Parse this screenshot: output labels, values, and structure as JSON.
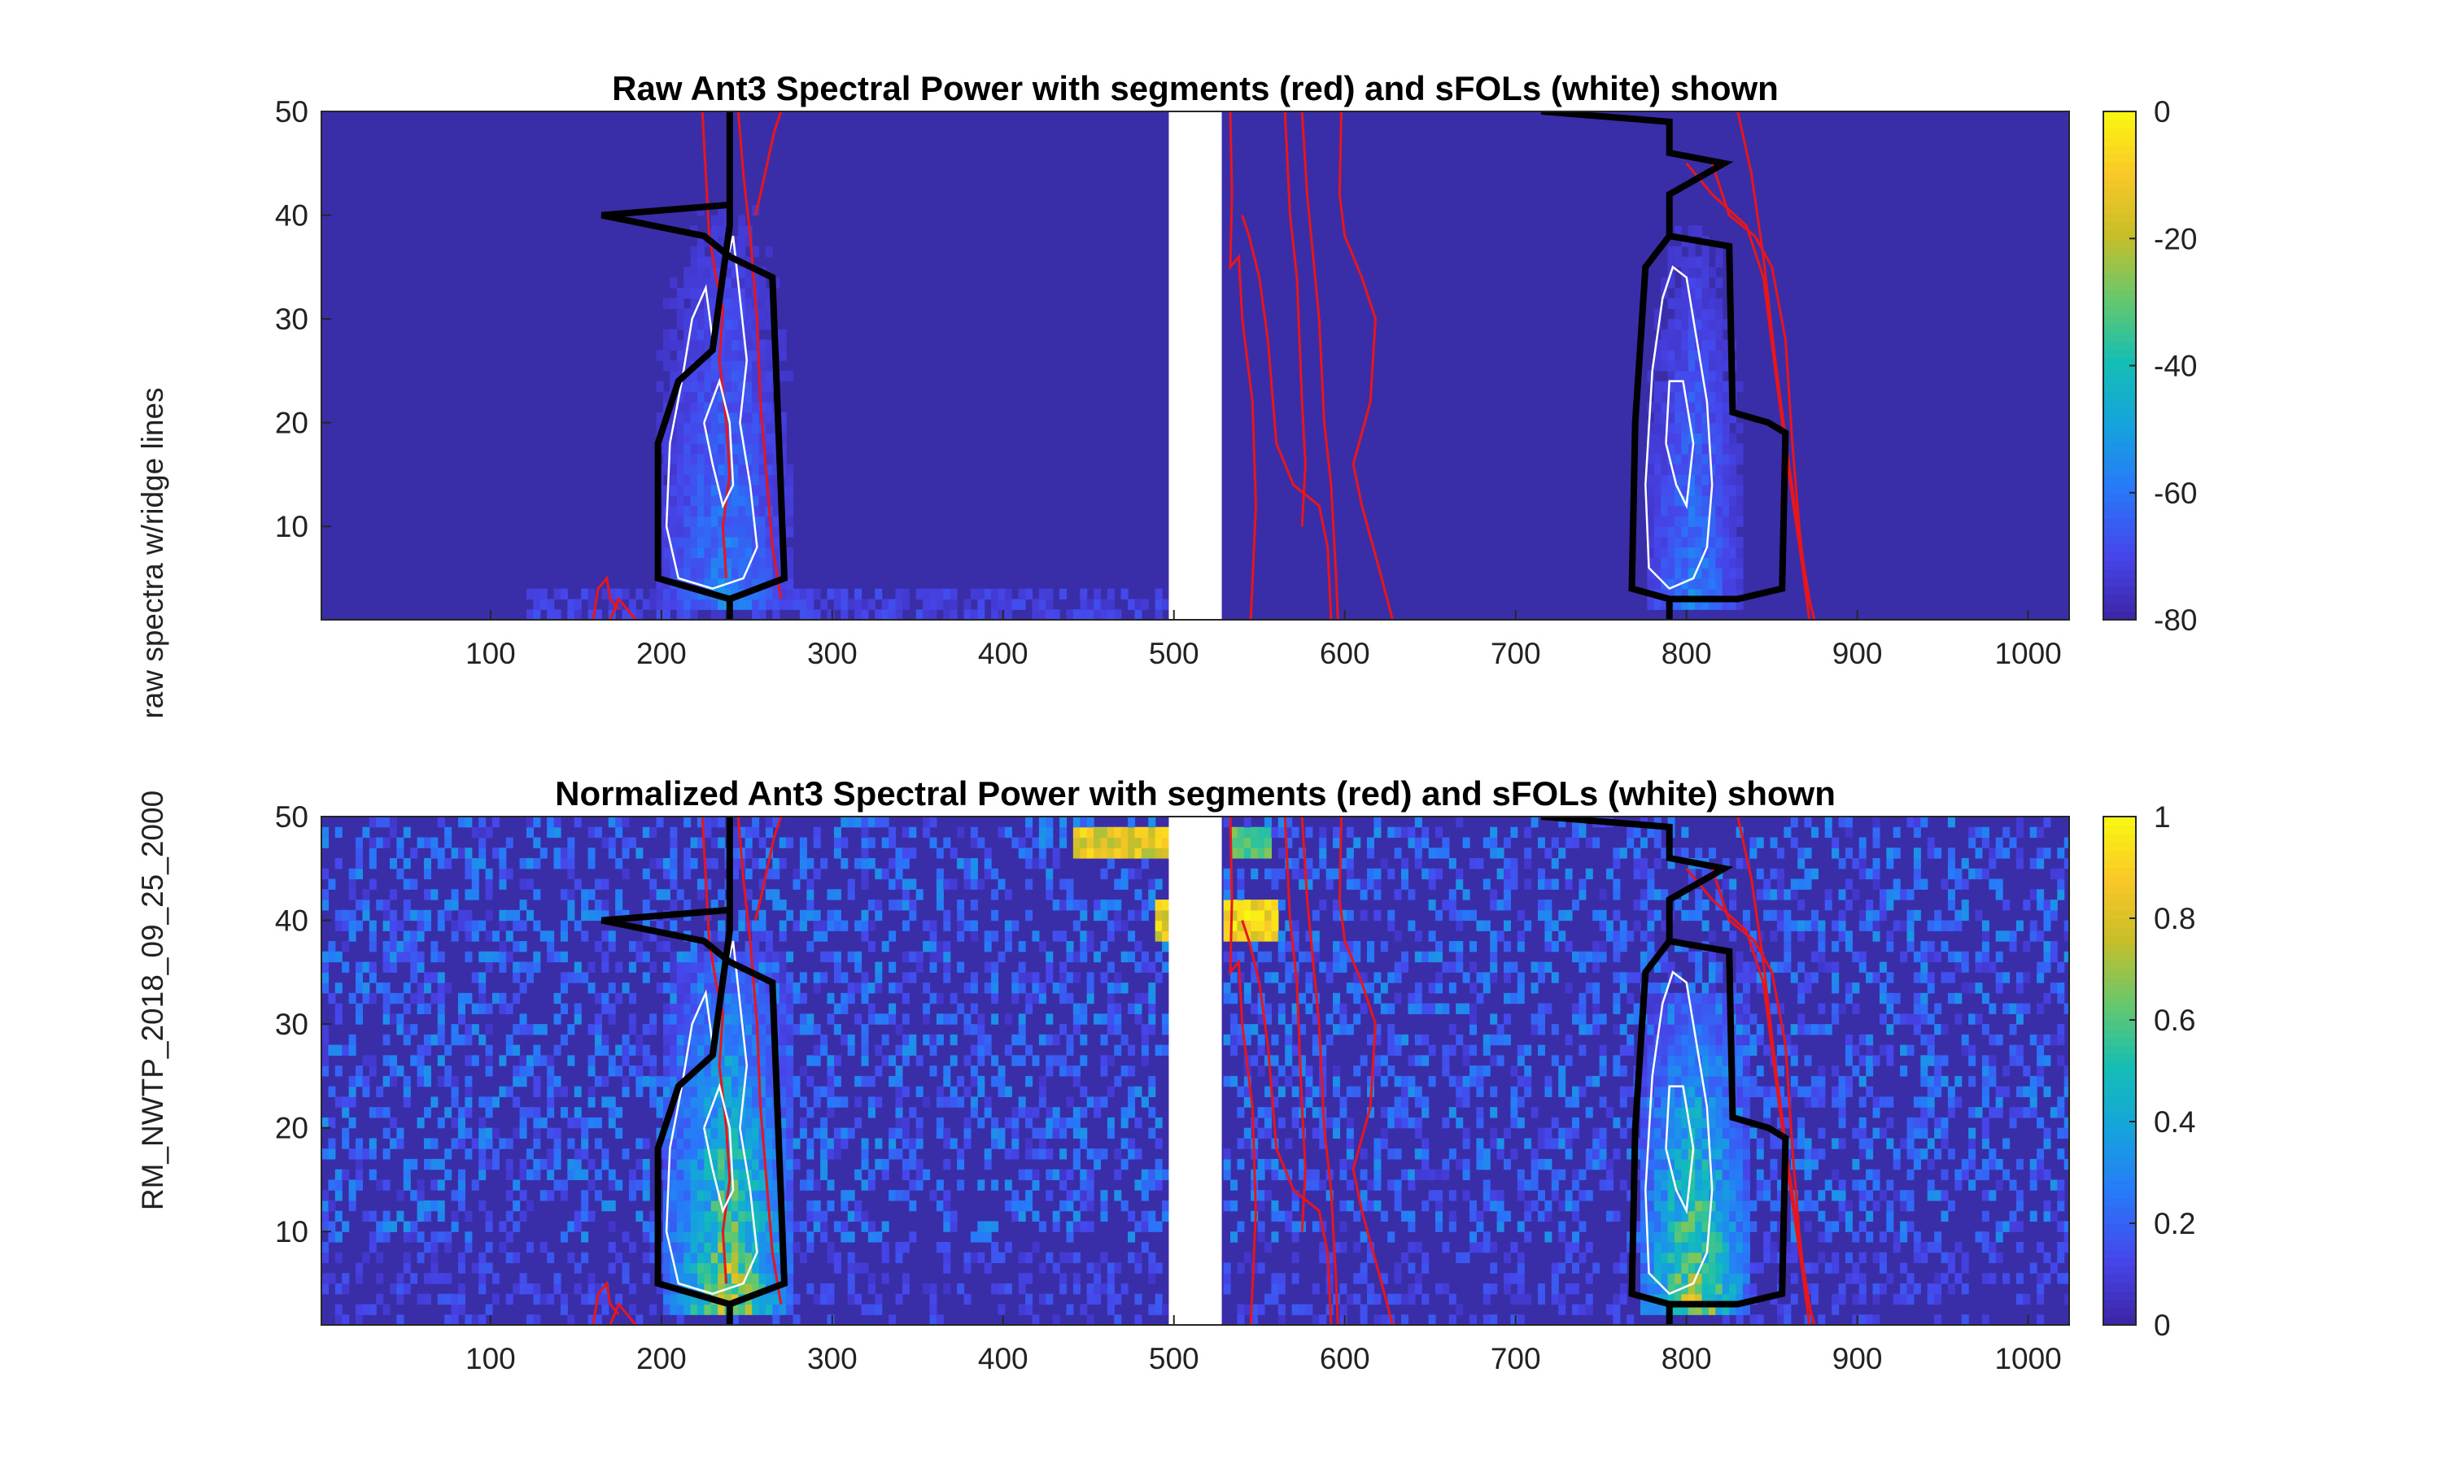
{
  "figure": {
    "ylabel_lines": [
      "RM_NWTP_2018_09_25_2000",
      "raw spectra w/ridge lines"
    ],
    "background": "#ffffff"
  },
  "colors": {
    "field_low": "#3a2ea8",
    "segment_line": "#e8161b",
    "sfol_line": "#ffffff",
    "boundary_line": "#000000",
    "gap_fill": "#ffffff"
  },
  "chart_data": [
    {
      "type": "heatmap",
      "title": "Raw Ant3 Spectral Power with segments (red) and sFOLs (white) shown",
      "xlabel": "",
      "ylabel": "",
      "xlim": [
        1,
        1024
      ],
      "ylim": [
        1,
        50
      ],
      "xticks": [
        100,
        200,
        300,
        400,
        500,
        600,
        700,
        800,
        900,
        1000
      ],
      "yticks": [
        10,
        20,
        30,
        40,
        50
      ],
      "colorbar": {
        "colormap": "parula",
        "range": [
          -80,
          0
        ],
        "ticks": [
          0,
          -20,
          -40,
          -60,
          -80
        ]
      },
      "gap_x": [
        497,
        528
      ],
      "energy_regions": [
        {
          "x_range": [
            195,
            275
          ],
          "y_range": [
            2,
            40
          ],
          "peak": 0.35
        },
        {
          "x_range": [
            775,
            830
          ],
          "y_range": [
            2,
            38
          ],
          "peak": 0.35
        }
      ],
      "base_band": {
        "x_range": [
          120,
          500
        ],
        "y_range": [
          1,
          3
        ],
        "peak": 0.15
      }
    },
    {
      "type": "heatmap",
      "title": "Normalized Ant3 Spectral Power with segments (red) and sFOLs (white) shown",
      "xlabel": "",
      "ylabel": "",
      "xlim": [
        1,
        1024
      ],
      "ylim": [
        1,
        50
      ],
      "xticks": [
        100,
        200,
        300,
        400,
        500,
        600,
        700,
        800,
        900,
        1000
      ],
      "yticks": [
        10,
        20,
        30,
        40,
        50
      ],
      "colorbar": {
        "colormap": "parula",
        "range": [
          0,
          1
        ],
        "ticks": [
          1,
          0.8,
          0.6,
          0.4,
          0.2,
          0
        ]
      },
      "gap_x": [
        497,
        528
      ],
      "energy_regions": [
        {
          "x_range": [
            200,
            275
          ],
          "y_range": [
            2,
            36
          ],
          "peak": 0.9
        },
        {
          "x_range": [
            770,
            835
          ],
          "y_range": [
            2,
            32
          ],
          "peak": 0.9
        }
      ],
      "hot_spots": [
        {
          "x_range": [
            440,
            497
          ],
          "y_range": [
            46,
            48
          ],
          "peak": 0.95
        },
        {
          "x_range": [
            488,
            497
          ],
          "y_range": [
            38,
            41
          ],
          "peak": 0.95
        },
        {
          "x_range": [
            528,
            560
          ],
          "y_range": [
            38,
            41
          ],
          "peak": 1.0
        },
        {
          "x_range": [
            530,
            555
          ],
          "y_range": [
            46,
            48
          ],
          "peak": 0.7
        }
      ],
      "noise_level": 0.22
    }
  ],
  "overlays": {
    "boundary_left": [
      [
        240,
        50
      ],
      [
        240,
        41
      ],
      [
        165,
        40
      ],
      [
        225,
        38
      ],
      [
        240,
        36
      ],
      [
        265,
        34
      ],
      [
        272,
        5
      ],
      [
        240,
        3
      ],
      [
        198,
        5
      ],
      [
        198,
        18
      ],
      [
        210,
        24
      ],
      [
        230,
        27
      ],
      [
        240,
        39
      ],
      [
        240,
        50
      ]
    ],
    "boundary_left_stem": [
      [
        240,
        3
      ],
      [
        240,
        1
      ]
    ],
    "boundary_right": [
      [
        715,
        50
      ],
      [
        790,
        49
      ],
      [
        790,
        46
      ],
      [
        822,
        45
      ],
      [
        790,
        42
      ],
      [
        790,
        38
      ],
      [
        825,
        37
      ],
      [
        827,
        21
      ],
      [
        848,
        20
      ],
      [
        858,
        19
      ],
      [
        856,
        4
      ],
      [
        830,
        3
      ],
      [
        790,
        3
      ],
      [
        768,
        4
      ],
      [
        770,
        20
      ],
      [
        776,
        35
      ],
      [
        790,
        38
      ]
    ],
    "boundary_right_stem": [
      [
        790,
        3
      ],
      [
        790,
        1
      ]
    ],
    "red_segments": [
      [
        [
          160,
          1
        ],
        [
          163,
          4
        ],
        [
          168,
          5
        ],
        [
          170,
          3
        ],
        [
          175,
          2
        ]
      ],
      [
        [
          170,
          1
        ],
        [
          175,
          3
        ],
        [
          180,
          2
        ],
        [
          185,
          1
        ]
      ],
      [
        [
          224,
          50
        ],
        [
          226,
          44
        ],
        [
          228,
          38
        ],
        [
          232,
          34
        ],
        [
          236,
          31
        ],
        [
          234,
          26
        ],
        [
          238,
          20
        ],
        [
          240,
          15
        ],
        [
          236,
          10
        ],
        [
          238,
          5
        ]
      ],
      [
        [
          245,
          50
        ],
        [
          248,
          44
        ],
        [
          252,
          38
        ],
        [
          256,
          30
        ],
        [
          258,
          22
        ],
        [
          262,
          14
        ],
        [
          265,
          8
        ],
        [
          270,
          3
        ]
      ],
      [
        [
          255,
          40
        ],
        [
          258,
          42
        ],
        [
          262,
          45
        ],
        [
          266,
          48
        ],
        [
          270,
          50
        ]
      ],
      [
        [
          533,
          50
        ],
        [
          534,
          42
        ],
        [
          533,
          35
        ],
        [
          538,
          36
        ],
        [
          540,
          30
        ],
        [
          546,
          22
        ],
        [
          548,
          12
        ],
        [
          545,
          1
        ]
      ],
      [
        [
          540,
          40
        ],
        [
          544,
          38
        ],
        [
          550,
          34
        ],
        [
          555,
          28
        ],
        [
          560,
          18
        ],
        [
          570,
          14
        ],
        [
          585,
          12
        ],
        [
          590,
          8
        ],
        [
          592,
          1
        ]
      ],
      [
        [
          565,
          50
        ],
        [
          568,
          40
        ],
        [
          572,
          34
        ],
        [
          575,
          22
        ],
        [
          577,
          16
        ],
        [
          575,
          10
        ]
      ],
      [
        [
          575,
          50
        ],
        [
          578,
          42
        ],
        [
          585,
          30
        ],
        [
          588,
          20
        ],
        [
          592,
          14
        ],
        [
          595,
          5
        ],
        [
          596,
          1
        ]
      ],
      [
        [
          598,
          50
        ],
        [
          597,
          42
        ],
        [
          600,
          38
        ],
        [
          610,
          34
        ],
        [
          618,
          30
        ],
        [
          615,
          22
        ],
        [
          605,
          16
        ],
        [
          610,
          12
        ],
        [
          620,
          6
        ],
        [
          628,
          1
        ]
      ],
      [
        [
          815,
          45
        ],
        [
          825,
          40
        ],
        [
          840,
          38
        ],
        [
          850,
          35
        ],
        [
          858,
          28
        ],
        [
          862,
          18
        ],
        [
          866,
          10
        ],
        [
          870,
          4
        ],
        [
          875,
          1
        ]
      ],
      [
        [
          800,
          45
        ],
        [
          815,
          42
        ],
        [
          835,
          39
        ],
        [
          845,
          34
        ],
        [
          852,
          25
        ],
        [
          860,
          15
        ],
        [
          868,
          6
        ],
        [
          872,
          1
        ]
      ],
      [
        [
          830,
          50
        ],
        [
          838,
          44
        ],
        [
          845,
          36
        ],
        [
          852,
          26
        ],
        [
          860,
          16
        ],
        [
          867,
          8
        ],
        [
          873,
          2
        ]
      ]
    ],
    "white_contours": [
      [
        [
          205,
          18
        ],
        [
          212,
          24
        ],
        [
          218,
          30
        ],
        [
          226,
          33
        ],
        [
          230,
          28
        ],
        [
          236,
          34
        ],
        [
          242,
          38
        ],
        [
          246,
          32
        ],
        [
          250,
          26
        ],
        [
          246,
          20
        ],
        [
          252,
          14
        ],
        [
          256,
          8
        ],
        [
          248,
          5
        ],
        [
          230,
          4
        ],
        [
          210,
          5
        ],
        [
          203,
          10
        ],
        [
          205,
          18
        ]
      ],
      [
        [
          225,
          20
        ],
        [
          230,
          16
        ],
        [
          236,
          12
        ],
        [
          242,
          14
        ],
        [
          240,
          20
        ],
        [
          234,
          24
        ],
        [
          225,
          20
        ]
      ],
      [
        [
          780,
          25
        ],
        [
          786,
          32
        ],
        [
          792,
          35
        ],
        [
          800,
          34
        ],
        [
          806,
          28
        ],
        [
          812,
          22
        ],
        [
          815,
          14
        ],
        [
          812,
          8
        ],
        [
          804,
          5
        ],
        [
          790,
          4
        ],
        [
          778,
          6
        ],
        [
          776,
          14
        ],
        [
          780,
          25
        ]
      ],
      [
        [
          788,
          18
        ],
        [
          794,
          14
        ],
        [
          800,
          12
        ],
        [
          804,
          18
        ],
        [
          798,
          24
        ],
        [
          790,
          24
        ],
        [
          788,
          18
        ]
      ]
    ]
  }
}
